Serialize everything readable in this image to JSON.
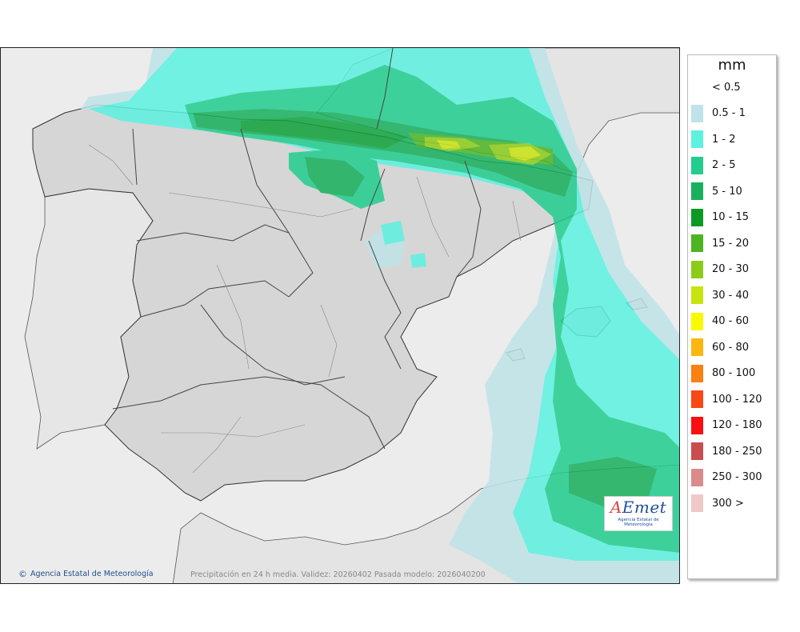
{
  "legend": {
    "unit": "mm",
    "items": [
      {
        "label": "< 0.5",
        "color": ""
      },
      {
        "label": "0.5 - 1",
        "color": "#bfe3e8"
      },
      {
        "label": "1 - 2",
        "color": "#5cf2e0"
      },
      {
        "label": "2 - 5",
        "color": "#22cd8f"
      },
      {
        "label": "5 - 10",
        "color": "#18b05c"
      },
      {
        "label": "10 - 15",
        "color": "#0c9a27"
      },
      {
        "label": "15 - 20",
        "color": "#4db521"
      },
      {
        "label": "20 - 30",
        "color": "#8ccc18"
      },
      {
        "label": "30 - 40",
        "color": "#c9e310"
      },
      {
        "label": "40 - 60",
        "color": "#f9f900"
      },
      {
        "label": "60 - 80",
        "color": "#f9b70f"
      },
      {
        "label": "80 - 100",
        "color": "#f98013"
      },
      {
        "label": "100 - 120",
        "color": "#f94813"
      },
      {
        "label": "120 - 180",
        "color": "#f90f0f"
      },
      {
        "label": "180 - 250",
        "color": "#c84e4e"
      },
      {
        "label": "250 - 300",
        "color": "#da8c8c"
      },
      {
        "label": "300 >",
        "color": "#f0c8c8"
      }
    ]
  },
  "footer": {
    "credit": "Agencia Estatal de Meteorología",
    "caption": "Precipitación en 24 h media. Validez: 20260402 Pasada modelo: 2026040200"
  },
  "logo": {
    "brand_a": "A",
    "brand_rest": "Emet",
    "subtitle": "Agencia Estatal de Meteorología"
  },
  "colors": {
    "land": "#dcdcdc",
    "land_outside": "#ececec",
    "sea": "#ffffff"
  }
}
